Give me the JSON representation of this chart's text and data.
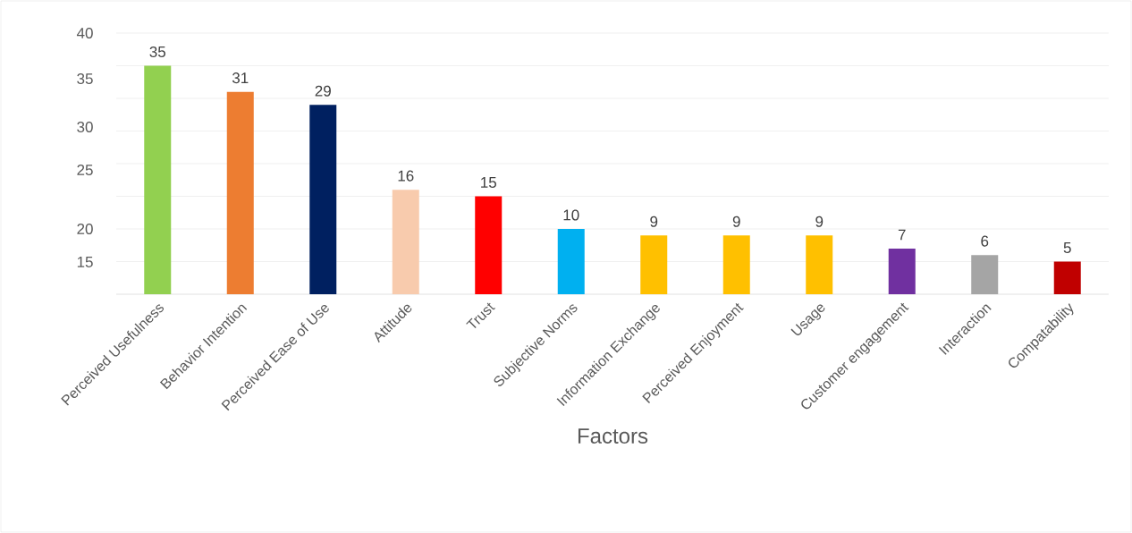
{
  "chart_data": {
    "type": "bar",
    "xlabel": "Factors",
    "categories": [
      "Perceived Usefulness",
      "Behavior Intention",
      "Perceived Ease of Use",
      "Attitude",
      "Trust",
      "Subjective Norms",
      "Information Exchange",
      "Perceived Enjoyment",
      "Usage",
      "Customer engagement",
      "Interaction",
      "Compatability"
    ],
    "values": [
      35,
      31,
      29,
      16,
      15,
      10,
      9,
      9,
      9,
      7,
      6,
      5
    ],
    "colors": [
      "#92d050",
      "#ed7d31",
      "#002060",
      "#f8cbad",
      "#ff0000",
      "#00b0f0",
      "#ffc000",
      "#ffc000",
      "#ffc000",
      "#7030a0",
      "#a5a5a5",
      "#c00000"
    ],
    "ylim": [
      0,
      40
    ],
    "yticks": [
      {
        "value": 0,
        "label": null
      },
      {
        "value": 5,
        "label": null
      },
      {
        "value": 10,
        "label": null
      },
      {
        "value": 15,
        "label": null
      },
      {
        "value": 20,
        "label": null
      },
      {
        "value": 25,
        "label": null
      },
      {
        "value": 30,
        "label": null
      },
      {
        "value": 35,
        "label": null
      },
      {
        "value": 40,
        "label": null
      }
    ],
    "annotations": [
      "40",
      "35",
      "30",
      "25",
      "20",
      "15"
    ],
    "grid": "y",
    "data_labels": true
  }
}
